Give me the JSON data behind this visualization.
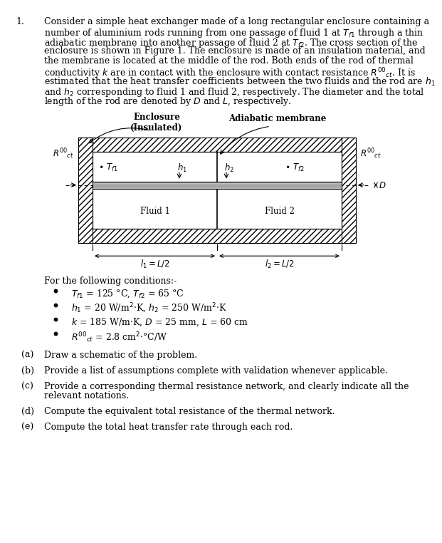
{
  "background_color": "#ffffff",
  "para_lines": [
    "Consider a simple heat exchanger made of a long rectangular enclosure containing a",
    "number of aluminium rods running from one passage of fluid 1 at $T_{f1}$ through a thin",
    "adiabatic membrane into another passage of fluid 2 at $T_{f2}$. The cross section of the",
    "enclosure is shown in Figure 1. The enclosure is made of an insulation material, and",
    "the membrane is located at the middle of the rod. Both ends of the rod of thermal",
    "conductivity $k$ are in contact with the enclosure with contact resistance $R''_{ct}$. It is",
    "estimated that the heat transfer coefficients between the two fluids and the rod are $h_1$",
    "and $h_2$ corresponding to fluid 1 and fluid 2, respectively. The diameter and the total",
    "length of the rod are denoted by $D$ and $L$, respectively."
  ],
  "conditions_header": "For the following conditions:-",
  "conditions": [
    "$T_{f1}$ = 125 °C, $T_{f2}$ = 65 °C",
    "$h_1$ = 20 W/m$^2$·K, $h_2$ = 250 W/m$^2$·K",
    "$k$ = 185 W/m·K, $D$ = 25 mm, $L$ = 60 cm",
    "$R''_{ct}$ = 2.8 cm$^2$·°C/W"
  ],
  "parts": [
    [
      "(a)",
      "Draw a schematic of the problem."
    ],
    [
      "(b)",
      "Provide a list of assumptions complete with validation whenever applicable."
    ],
    [
      "(c)",
      "Provide a corresponding thermal resistance network, and clearly indicate all the relevant notations."
    ],
    [
      "(d)",
      "Compute the equivalent total resistance of the thermal network."
    ],
    [
      "(e)",
      "Compute the total heat transfer rate through each rod."
    ]
  ]
}
